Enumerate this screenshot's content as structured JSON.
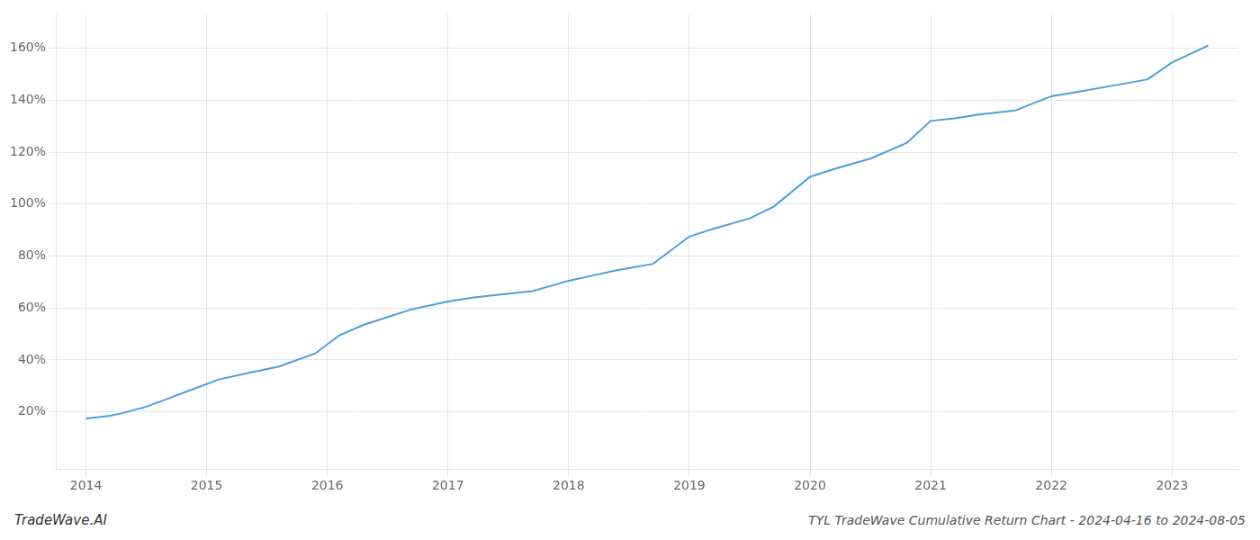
{
  "chart_data": {
    "type": "line",
    "title": "TYL TradeWave Cumulative Return Chart - 2024-04-16 to 2024-08-05",
    "annotations": [
      "TradeWave.AI"
    ],
    "x": [
      2014.0,
      2014.1,
      2014.2,
      2014.3,
      2014.5,
      2014.7,
      2014.9,
      2015.1,
      2015.3,
      2015.6,
      2015.9,
      2016.1,
      2016.3,
      2016.5,
      2016.7,
      2017.0,
      2017.2,
      2017.4,
      2017.7,
      2018.0,
      2018.2,
      2018.4,
      2018.7,
      2019.0,
      2019.2,
      2019.5,
      2019.7,
      2020.0,
      2020.2,
      2020.5,
      2020.8,
      2021.0,
      2021.2,
      2021.4,
      2021.7,
      2022.0,
      2022.2,
      2022.5,
      2022.8,
      2023.0,
      2023.3
    ],
    "values": [
      0.175,
      0.18,
      0.185,
      0.195,
      0.22,
      0.255,
      0.29,
      0.325,
      0.345,
      0.375,
      0.425,
      0.495,
      0.535,
      0.565,
      0.595,
      0.625,
      0.64,
      0.65,
      0.665,
      0.705,
      0.725,
      0.745,
      0.77,
      0.875,
      0.905,
      0.945,
      0.99,
      1.105,
      1.135,
      1.175,
      1.235,
      1.32,
      1.33,
      1.345,
      1.36,
      1.415,
      1.43,
      1.455,
      1.48,
      1.545,
      1.61
    ],
    "color": "#4f9fd4",
    "xlim": [
      2013.75,
      2023.55
    ],
    "ylim": [
      -0.02,
      1.73
    ],
    "xticks": [
      2014,
      2015,
      2016,
      2017,
      2018,
      2019,
      2020,
      2021,
      2022,
      2023
    ],
    "yticks": [
      {
        "value": 0.2,
        "label": "20%"
      },
      {
        "value": 0.4,
        "label": "40%"
      },
      {
        "value": 0.6,
        "label": "60%"
      },
      {
        "value": 0.8,
        "label": "80%"
      },
      {
        "value": 1.0,
        "label": "100%"
      },
      {
        "value": 1.2,
        "label": "120%"
      },
      {
        "value": 1.4,
        "label": "140%"
      },
      {
        "value": 1.6,
        "label": "160%"
      }
    ],
    "grid": true
  }
}
